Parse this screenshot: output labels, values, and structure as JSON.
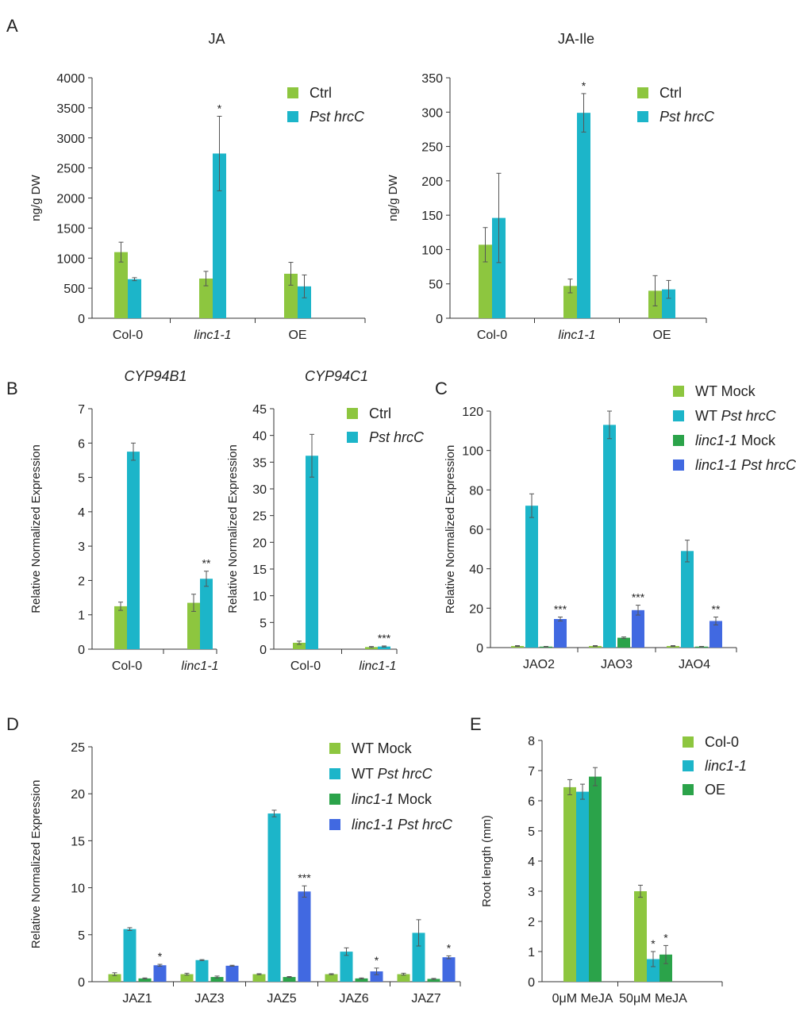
{
  "panel_labels": [
    "A",
    "B",
    "C",
    "D",
    "E"
  ],
  "chart_data": [
    {
      "id": "A1",
      "type": "bar",
      "panel": "A",
      "title": "JA",
      "title_italic": false,
      "ylabel": "ng/g DW",
      "xlabel": "",
      "ylim": [
        0,
        4000
      ],
      "yticks": [
        "0",
        "500",
        "1000",
        "1500",
        "2000",
        "2500",
        "3000",
        "3500",
        "4000"
      ],
      "categories": [
        "Col-0",
        "linc1-1",
        "OE"
      ],
      "category_italic": [
        false,
        true,
        false
      ],
      "series": [
        {
          "name": "Ctrl",
          "color": "#8dc63f",
          "values": [
            1100,
            660,
            740
          ],
          "errors": [
            165,
            120,
            190
          ]
        },
        {
          "name": "Pst hrcC",
          "name_italic": true,
          "color": "#1cb5c9",
          "values": [
            650,
            2740,
            530
          ],
          "errors": [
            25,
            620,
            190
          ]
        }
      ],
      "significance": [
        {
          "category": 1,
          "series": 1,
          "label": "*"
        }
      ],
      "legend": "top-right"
    },
    {
      "id": "A2",
      "type": "bar",
      "panel": "A",
      "title": "JA-Ile",
      "title_italic": false,
      "ylabel": "ng/g DW",
      "xlabel": "",
      "ylim": [
        0,
        350
      ],
      "yticks": [
        "0",
        "50",
        "100",
        "150",
        "200",
        "250",
        "300",
        "350"
      ],
      "categories": [
        "Col-0",
        "linc1-1",
        "OE"
      ],
      "category_italic": [
        false,
        true,
        false
      ],
      "series": [
        {
          "name": "Ctrl",
          "color": "#8dc63f",
          "values": [
            107,
            47,
            40
          ],
          "errors": [
            25,
            10,
            22
          ]
        },
        {
          "name": "Pst hrcC",
          "name_italic": true,
          "color": "#1cb5c9",
          "values": [
            146,
            299,
            42
          ],
          "errors": [
            65,
            28,
            13
          ]
        }
      ],
      "significance": [
        {
          "category": 1,
          "series": 1,
          "label": "*"
        }
      ],
      "legend": "top-right"
    },
    {
      "id": "B1",
      "type": "bar",
      "panel": "B",
      "title": "CYP94B1",
      "title_italic": true,
      "ylabel": "Relative Normalized Expression",
      "xlabel": "",
      "ylim": [
        0,
        7
      ],
      "yticks": [
        "0",
        "1",
        "2",
        "3",
        "4",
        "5",
        "6",
        "7"
      ],
      "categories": [
        "Col-0",
        "linc1-1"
      ],
      "category_italic": [
        false,
        true
      ],
      "series": [
        {
          "name": "Ctrl",
          "color": "#8dc63f",
          "values": [
            1.25,
            1.35
          ],
          "errors": [
            0.12,
            0.25
          ]
        },
        {
          "name": "Pst hrcC",
          "name_italic": true,
          "color": "#1cb5c9",
          "values": [
            5.75,
            2.05
          ],
          "errors": [
            0.25,
            0.22
          ]
        }
      ],
      "significance": [
        {
          "category": 1,
          "series": 1,
          "label": "**"
        }
      ],
      "legend": "none"
    },
    {
      "id": "B2",
      "type": "bar",
      "panel": "B",
      "title": "CYP94C1",
      "title_italic": true,
      "ylabel": "Relative Normalized Expression",
      "xlabel": "",
      "ylim": [
        0,
        45
      ],
      "yticks": [
        "0",
        "5",
        "10",
        "15",
        "20",
        "25",
        "30",
        "35",
        "40",
        "45"
      ],
      "categories": [
        "Col-0",
        "linc1-1"
      ],
      "category_italic": [
        false,
        true
      ],
      "series": [
        {
          "name": "Ctrl",
          "color": "#8dc63f",
          "values": [
            1.2,
            0.4
          ],
          "errors": [
            0.3,
            0.1
          ]
        },
        {
          "name": "Pst hrcC",
          "name_italic": true,
          "color": "#1cb5c9",
          "values": [
            36.2,
            0.5
          ],
          "errors": [
            4.0,
            0.1
          ]
        }
      ],
      "significance": [
        {
          "category": 1,
          "series": 1,
          "label": "***"
        }
      ],
      "legend": "top-right"
    },
    {
      "id": "C",
      "type": "bar",
      "panel": "C",
      "title": "",
      "title_italic": false,
      "ylabel": "Relative Normalized Expression",
      "xlabel": "",
      "ylim": [
        0,
        120
      ],
      "yticks": [
        "0",
        "20",
        "40",
        "60",
        "80",
        "100",
        "120"
      ],
      "categories": [
        "JAO2",
        "JAO3",
        "JAO4"
      ],
      "category_italic": [
        false,
        false,
        false
      ],
      "series": [
        {
          "name": "WT Mock",
          "color": "#8dc63f",
          "values": [
            0.8,
            0.8,
            0.8
          ],
          "errors": [
            0.2,
            0.2,
            0.2
          ]
        },
        {
          "name": "WT Pst hrcC",
          "name_parts": [
            "WT ",
            "Pst hrcC"
          ],
          "color": "#1cb5c9",
          "values": [
            72,
            113,
            49
          ],
          "errors": [
            6,
            7,
            5.5
          ]
        },
        {
          "name": "linc1-1 Mock",
          "name_parts": [
            "linc1-1",
            " Mock"
          ],
          "color": "#2ba34a",
          "values": [
            0.5,
            5,
            0.5
          ],
          "errors": [
            0.1,
            0.4,
            0.1
          ]
        },
        {
          "name": "linc1-1 Pst hrcC",
          "name_parts": [
            "linc1-1",
            " Pst hrcC"
          ],
          "color": "#4169e1",
          "values": [
            14.5,
            19,
            13.5
          ],
          "errors": [
            1,
            2.5,
            2
          ]
        }
      ],
      "significance": [
        {
          "category": 0,
          "series": 3,
          "label": "***"
        },
        {
          "category": 1,
          "series": 3,
          "label": "***"
        },
        {
          "category": 2,
          "series": 3,
          "label": "**"
        }
      ],
      "legend": "top-right"
    },
    {
      "id": "D",
      "type": "bar",
      "panel": "D",
      "title": "",
      "title_italic": false,
      "ylabel": "Relative Normalized Expression",
      "xlabel": "",
      "ylim": [
        0,
        25
      ],
      "yticks": [
        "0",
        "5",
        "10",
        "15",
        "20",
        "25"
      ],
      "categories": [
        "JAZ1",
        "JAZ3",
        "JAZ5",
        "JAZ6",
        "JAZ7"
      ],
      "category_italic": [
        false,
        false,
        false,
        false,
        false
      ],
      "series": [
        {
          "name": "WT Mock",
          "color": "#8dc63f",
          "values": [
            0.8,
            0.8,
            0.8,
            0.8,
            0.8
          ],
          "errors": [
            0.15,
            0.1,
            0.05,
            0.05,
            0.1
          ]
        },
        {
          "name": "WT Pst hrcC",
          "name_parts": [
            "WT ",
            "Pst hrcC"
          ],
          "color": "#1cb5c9",
          "values": [
            5.6,
            2.3,
            17.9,
            3.2,
            5.2
          ],
          "errors": [
            0.15,
            0.05,
            0.35,
            0.4,
            1.4
          ]
        },
        {
          "name": "linc1-1 Mock",
          "name_parts": [
            "linc1-1",
            " Mock"
          ],
          "color": "#2ba34a",
          "values": [
            0.35,
            0.5,
            0.5,
            0.35,
            0.3
          ],
          "errors": [
            0.05,
            0.1,
            0.05,
            0.05,
            0.05
          ]
        },
        {
          "name": "linc1-1 Pst hrcC",
          "name_parts": [
            "linc1-1",
            " Pst hrcC"
          ],
          "color": "#4169e1",
          "values": [
            1.75,
            1.7,
            9.6,
            1.1,
            2.6
          ],
          "errors": [
            0.1,
            0.05,
            0.6,
            0.35,
            0.15
          ]
        }
      ],
      "significance": [
        {
          "category": 0,
          "series": 3,
          "label": "*"
        },
        {
          "category": 2,
          "series": 3,
          "label": "***"
        },
        {
          "category": 3,
          "series": 3,
          "label": "*"
        },
        {
          "category": 4,
          "series": 3,
          "label": "*"
        }
      ],
      "legend": "top-right"
    },
    {
      "id": "E",
      "type": "bar",
      "panel": "E",
      "title": "",
      "title_italic": false,
      "ylabel": "Root length (mm)",
      "xlabel": "",
      "ylim": [
        0,
        8
      ],
      "yticks": [
        "0",
        "1",
        "2",
        "3",
        "4",
        "5",
        "6",
        "7",
        "8"
      ],
      "categories": [
        "0μM MeJA",
        "50μM MeJA"
      ],
      "category_italic": [
        false,
        false
      ],
      "series": [
        {
          "name": "Col-0",
          "color": "#8dc63f",
          "values": [
            6.45,
            3.0
          ],
          "errors": [
            0.25,
            0.2
          ]
        },
        {
          "name": "linc1-1",
          "name_italic": true,
          "color": "#1cb5c9",
          "values": [
            6.3,
            0.75
          ],
          "errors": [
            0.25,
            0.25
          ]
        },
        {
          "name": "OE",
          "color": "#2ba34a",
          "values": [
            6.8,
            0.9
          ],
          "errors": [
            0.3,
            0.3
          ]
        }
      ],
      "significance": [
        {
          "category": 1,
          "series": 1,
          "label": "*"
        },
        {
          "category": 1,
          "series": 2,
          "label": "*"
        }
      ],
      "legend": "top-right"
    }
  ]
}
